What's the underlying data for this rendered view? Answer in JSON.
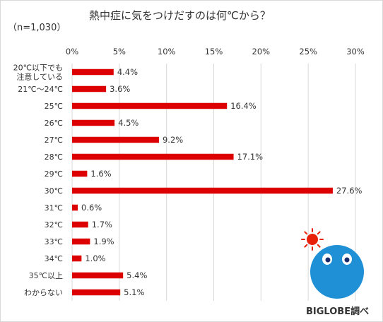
{
  "title": "熱中症に気をつけだすのは何℃から？",
  "sample_size": "（n=1,030）",
  "brand": "BIGLOBE調べ",
  "colors": {
    "bar": "#dd0000",
    "grid": "#d9d9d9",
    "sun": "#e8210a",
    "mascot": "#1f8fd6"
  },
  "chart_data": {
    "type": "bar",
    "orientation": "horizontal",
    "title": "熱中症に気をつけだすのは何℃から？",
    "categories": [
      "20℃以下でも\n注意している",
      "21℃～24℃",
      "25℃",
      "26℃",
      "27℃",
      "28℃",
      "29℃",
      "30℃",
      "31℃",
      "32℃",
      "33℃",
      "34℃",
      "35℃以上",
      "わからない"
    ],
    "values": [
      4.4,
      3.6,
      16.4,
      4.5,
      9.2,
      17.1,
      1.6,
      27.6,
      0.6,
      1.7,
      1.9,
      1.0,
      5.4,
      5.1
    ],
    "value_labels": [
      "4.4%",
      "3.6%",
      "16.4%",
      "4.5%",
      "9.2%",
      "17.1%",
      "1.6%",
      "27.6%",
      "0.6%",
      "1.7%",
      "1.9%",
      "1.0%",
      "5.4%",
      "5.1%"
    ],
    "xlim": [
      0,
      30
    ],
    "xticks": [
      0,
      5,
      10,
      15,
      20,
      25,
      30
    ],
    "xtick_labels": [
      "0%",
      "5%",
      "10%",
      "15%",
      "20%",
      "25%",
      "30%"
    ],
    "xaxis_position": "top",
    "grid": true,
    "legend": "none"
  }
}
